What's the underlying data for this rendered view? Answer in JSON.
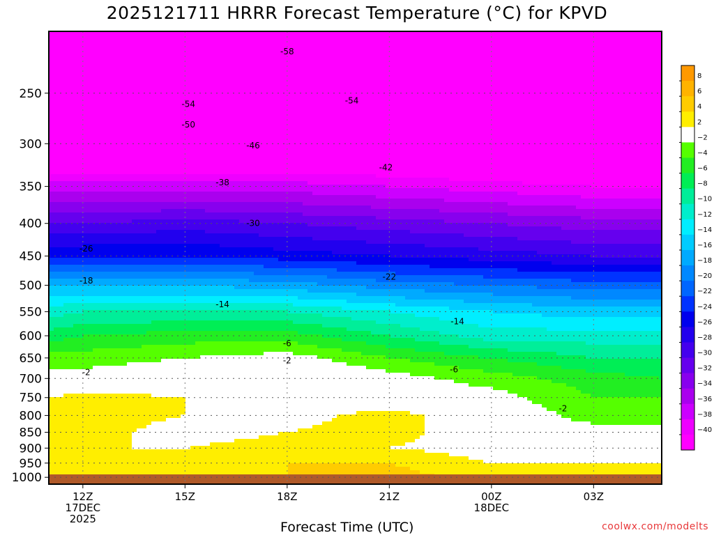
{
  "title": "2025121711 HRRR Forecast Temperature (°C) for KPVD",
  "xlabel": "Forecast Time (UTC)",
  "credit": "coolwx.com/modelts",
  "chart_data": {
    "type": "heatmap",
    "title": "2025121711 HRRR Forecast Temperature (°C) for KPVD",
    "xlabel": "Forecast Time (UTC)",
    "ylabel": "",
    "x_ticks": [
      {
        "hour": 12,
        "lines": [
          "12Z",
          "17DEC",
          "2025"
        ]
      },
      {
        "hour": 15,
        "lines": [
          "15Z"
        ]
      },
      {
        "hour": 18,
        "lines": [
          "18Z"
        ]
      },
      {
        "hour": 21,
        "lines": [
          "21Z"
        ]
      },
      {
        "hour": 24,
        "lines": [
          "00Z",
          "18DEC"
        ]
      },
      {
        "hour": 27,
        "lines": [
          "03Z"
        ]
      }
    ],
    "xlim_hours": [
      11,
      29
    ],
    "y_ticks": [
      250,
      300,
      350,
      400,
      450,
      500,
      550,
      600,
      650,
      700,
      750,
      800,
      850,
      900,
      950,
      1000
    ],
    "ylim_hpa": [
      1025,
      200
    ],
    "y_scale": "log-pressure",
    "grid": true,
    "colorbar": {
      "ticks": [
        8,
        6,
        4,
        2,
        -2,
        -4,
        -6,
        -8,
        -10,
        -12,
        -14,
        -16,
        -18,
        -20,
        -22,
        -24,
        -26,
        -28,
        -30,
        -32,
        -34,
        -36,
        -38,
        -40
      ],
      "bins": [
        {
          "lo": 8,
          "hi": 10,
          "color": "#ff9900"
        },
        {
          "lo": 6,
          "hi": 8,
          "color": "#ffb300"
        },
        {
          "lo": 4,
          "hi": 6,
          "color": "#ffcc00"
        },
        {
          "lo": 2,
          "hi": 4,
          "color": "#ffee00"
        },
        {
          "lo": -2,
          "hi": 2,
          "color": "#ffffff"
        },
        {
          "lo": -4,
          "hi": -2,
          "color": "#55ff00"
        },
        {
          "lo": -6,
          "hi": -4,
          "color": "#22ee22"
        },
        {
          "lo": -8,
          "hi": -6,
          "color": "#00ee55"
        },
        {
          "lo": -10,
          "hi": -8,
          "color": "#00ee99"
        },
        {
          "lo": -12,
          "hi": -10,
          "color": "#00eecc"
        },
        {
          "lo": -14,
          "hi": -12,
          "color": "#00eeff"
        },
        {
          "lo": -16,
          "hi": -14,
          "color": "#00ccff"
        },
        {
          "lo": -18,
          "hi": -16,
          "color": "#00aaff"
        },
        {
          "lo": -20,
          "hi": -18,
          "color": "#0088ff"
        },
        {
          "lo": -22,
          "hi": -20,
          "color": "#0066ff"
        },
        {
          "lo": -24,
          "hi": -22,
          "color": "#0033ff"
        },
        {
          "lo": -26,
          "hi": -24,
          "color": "#0000ee"
        },
        {
          "lo": -28,
          "hi": -26,
          "color": "#2200ee"
        },
        {
          "lo": -30,
          "hi": -28,
          "color": "#4400ee"
        },
        {
          "lo": -32,
          "hi": -30,
          "color": "#6600ee"
        },
        {
          "lo": -34,
          "hi": -32,
          "color": "#8800ee"
        },
        {
          "lo": -36,
          "hi": -34,
          "color": "#aa00ee"
        },
        {
          "lo": -38,
          "hi": -36,
          "color": "#cc00ff"
        },
        {
          "lo": -40,
          "hi": -38,
          "color": "#ee00ff"
        },
        {
          "lo": -60,
          "hi": -40,
          "color": "#ff00ff"
        }
      ]
    },
    "temperature_profile": {
      "hours": [
        11,
        12,
        15,
        18,
        21,
        24,
        27,
        29
      ],
      "levels_hpa": [
        1000,
        950,
        900,
        850,
        800,
        750,
        700,
        650,
        600,
        550,
        500,
        450,
        400,
        350,
        300,
        250,
        200
      ],
      "temps_c": [
        [
          4,
          4,
          3,
          4,
          5,
          3,
          3,
          3
        ],
        [
          3,
          3,
          3,
          4,
          4,
          2,
          2,
          2
        ],
        [
          2,
          2,
          2,
          3,
          2,
          1,
          1,
          2
        ],
        [
          3,
          3,
          1,
          2,
          3,
          0,
          -1,
          -1
        ],
        [
          3,
          3,
          2,
          1,
          3,
          0,
          -3,
          -3
        ],
        [
          2,
          3,
          2,
          1,
          0,
          -1,
          -4,
          -4
        ],
        [
          -1,
          -1,
          0,
          1,
          -1,
          -3,
          -5,
          -6
        ],
        [
          -3,
          -3,
          -2,
          -1,
          -4,
          -6,
          -8,
          -8
        ],
        [
          -7,
          -6,
          -5,
          -5,
          -8,
          -11,
          -11,
          -11
        ],
        [
          -11,
          -10,
          -10,
          -10,
          -12,
          -14,
          -15,
          -15
        ],
        [
          -16,
          -16,
          -16,
          -17,
          -19,
          -20,
          -21,
          -21
        ],
        [
          -24,
          -24,
          -24,
          -25,
          -26,
          -27,
          -28,
          -28
        ],
        [
          -30,
          -30,
          -29,
          -30,
          -31,
          -32,
          -33,
          -33
        ],
        [
          -37,
          -37,
          -37,
          -37,
          -38,
          -39,
          -40,
          -40
        ],
        [
          -46,
          -46,
          -46,
          -46,
          -46,
          -47,
          -47,
          -48
        ],
        [
          -54,
          -54,
          -54,
          -54,
          -54,
          -55,
          -56,
          -56
        ],
        [
          -58,
          -58,
          -58,
          -58,
          -59,
          -59,
          -60,
          -60
        ]
      ]
    },
    "contour_labels": [
      {
        "value": "-58",
        "hour": 18.0,
        "hpa": 215
      },
      {
        "value": "-54",
        "hour": 15.1,
        "hpa": 260
      },
      {
        "value": "-54",
        "hour": 19.9,
        "hpa": 257
      },
      {
        "value": "-50",
        "hour": 15.1,
        "hpa": 280
      },
      {
        "value": "-46",
        "hour": 17.0,
        "hpa": 302
      },
      {
        "value": "-42",
        "hour": 20.9,
        "hpa": 327
      },
      {
        "value": "-38",
        "hour": 16.1,
        "hpa": 345
      },
      {
        "value": "-30",
        "hour": 17.0,
        "hpa": 400
      },
      {
        "value": "-26",
        "hour": 12.1,
        "hpa": 438
      },
      {
        "value": "-22",
        "hour": 21.0,
        "hpa": 485
      },
      {
        "value": "-18",
        "hour": 12.1,
        "hpa": 492
      },
      {
        "value": "-14",
        "hour": 16.1,
        "hpa": 536
      },
      {
        "value": "-14",
        "hour": 23.0,
        "hpa": 570
      },
      {
        "value": "-6",
        "hour": 18.0,
        "hpa": 617
      },
      {
        "value": "-6",
        "hour": 22.9,
        "hpa": 678
      },
      {
        "value": "-2",
        "hour": 12.1,
        "hpa": 685
      },
      {
        "value": "-2",
        "hour": 18.0,
        "hpa": 656
      },
      {
        "value": "-2",
        "hour": 26.1,
        "hpa": 780
      }
    ]
  }
}
